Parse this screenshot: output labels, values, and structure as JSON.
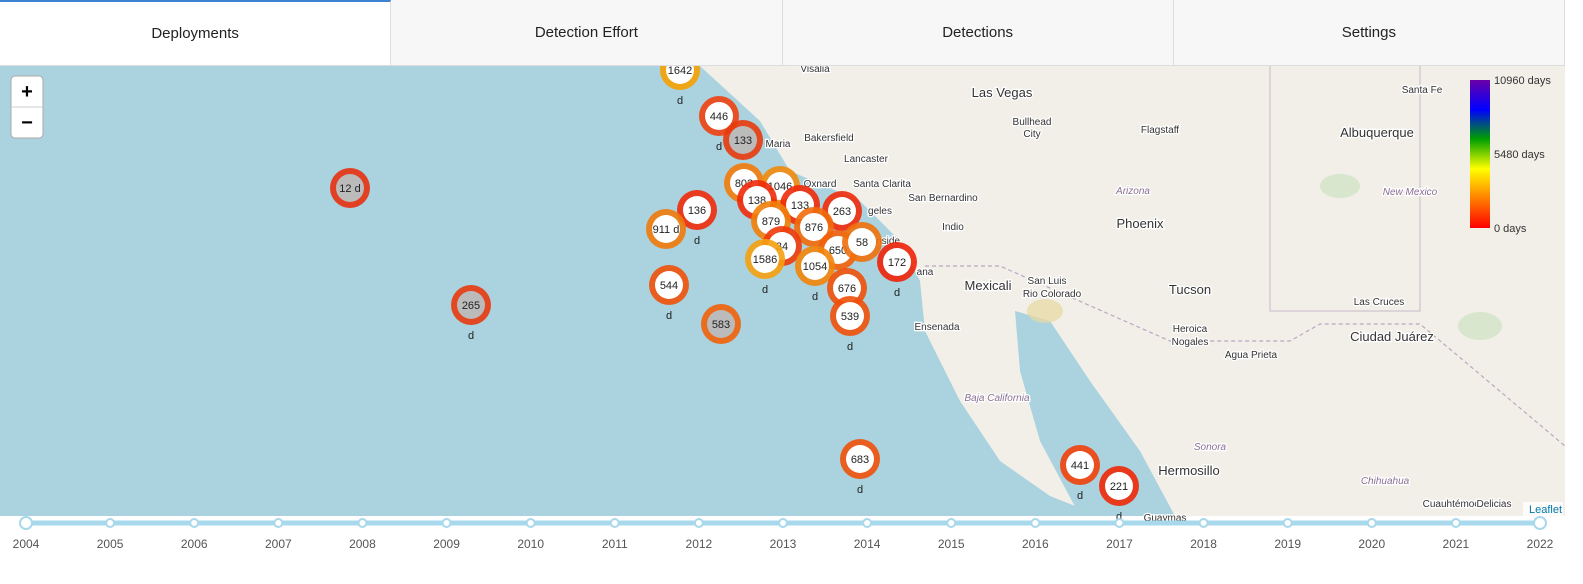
{
  "tabs": [
    "Deployments",
    "Detection Effort",
    "Detections",
    "Settings"
  ],
  "active_tab": 0,
  "zoom": {
    "in": "+",
    "out": "−"
  },
  "legend": {
    "max": "10960 days",
    "mid": "5480 days",
    "min": "0 days",
    "colors": [
      "#6a00a8",
      "#0000ff",
      "#00a000",
      "#ffff00",
      "#ff8000",
      "#ff0000"
    ]
  },
  "markers": [
    {
      "label": "1642",
      "unit": "d",
      "color": "#f5a000"
    },
    {
      "label": "446",
      "unit": "d",
      "color": "#f04010"
    },
    {
      "label": "133",
      "color": "#e8380c",
      "grey": true
    },
    {
      "label": "12 d",
      "color": "#e83010",
      "grey": true
    },
    {
      "label": "802",
      "color": "#f27a0a"
    },
    {
      "label": "1046",
      "color": "#f28a0a"
    },
    {
      "label": "138",
      "color": "#ee2a0a"
    },
    {
      "label": "133",
      "color": "#ee2a0a"
    },
    {
      "label": "136",
      "unit": "d",
      "color": "#ee2a0a"
    },
    {
      "label": "263",
      "color": "#ee2a0a"
    },
    {
      "label": "911 d",
      "color": "#f07a0a"
    },
    {
      "label": "879",
      "color": "#f28008"
    },
    {
      "label": "876",
      "color": "#f26a0a"
    },
    {
      "label": "34",
      "color": "#ee3a0a"
    },
    {
      "label": "650",
      "color": "#f2600a"
    },
    {
      "label": "58",
      "color": "#f0700a"
    },
    {
      "label": "1586",
      "unit": "d",
      "color": "#f5a010"
    },
    {
      "label": "1054",
      "unit": "d",
      "color": "#f2840a"
    },
    {
      "label": "172",
      "unit": "d",
      "color": "#ee2208"
    },
    {
      "label": "544",
      "unit": "d",
      "color": "#f0500a"
    },
    {
      "label": "676",
      "color": "#f0500a"
    },
    {
      "label": "265",
      "unit": "d",
      "color": "#e8380c",
      "grey": true
    },
    {
      "label": "583",
      "color": "#f0600a",
      "grey": true
    },
    {
      "label": "539",
      "unit": "d",
      "color": "#f0500a"
    },
    {
      "label": "683",
      "unit": "d",
      "color": "#f0500a"
    },
    {
      "label": "441",
      "unit": "d",
      "color": "#f0400a"
    },
    {
      "label": "221",
      "unit": "d",
      "color": "#ee2808"
    }
  ],
  "places": [
    "Visalia",
    "Las Vegas",
    "Bullhead",
    "City",
    "Bakersfield",
    "Flagstaff",
    "Santa Fe",
    "Albuquerque",
    "Maria",
    "Lancaster",
    "Oxnard",
    "Santa Clarita",
    "San Bernardino",
    "Arizona",
    "New Mexico",
    "Phoenix",
    "Indio",
    "geles",
    "ceanside",
    "ana",
    "Mexicali",
    "San Luis",
    "Rio Colorado",
    "Tucson",
    "Las Cruces",
    "Ensenada",
    "Heroica",
    "Nogales",
    "Agua Prieta",
    "Ciudad Juárez",
    "Baja California",
    "Sonora",
    "Hermosillo",
    "Chihuahua",
    "Cuauhtémoc",
    "Delicias",
    "Guaymas"
  ],
  "attribution": "Leaflet",
  "timeline": {
    "years": [
      2004,
      2005,
      2006,
      2007,
      2008,
      2009,
      2010,
      2011,
      2012,
      2013,
      2014,
      2015,
      2016,
      2017,
      2018,
      2019,
      2020,
      2021,
      2022
    ]
  }
}
